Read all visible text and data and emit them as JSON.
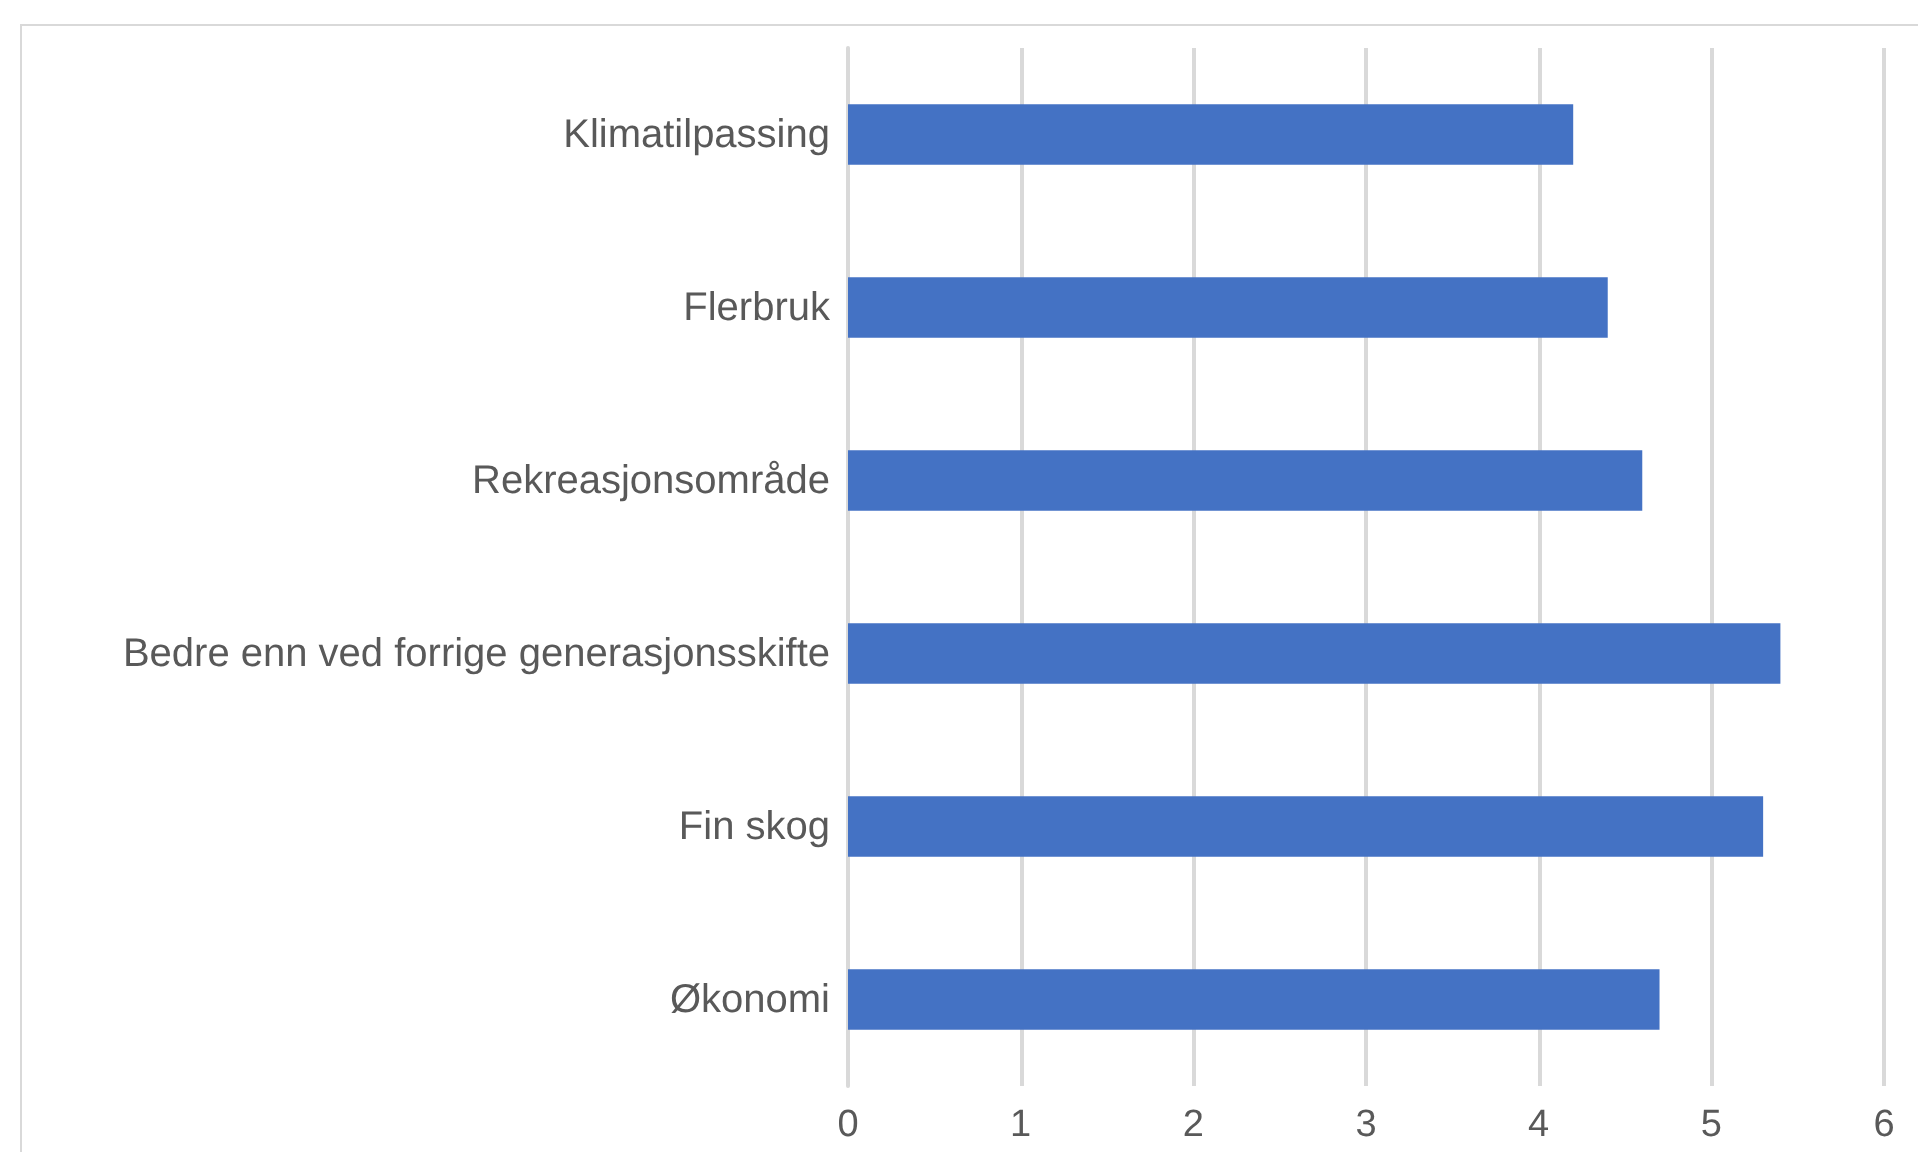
{
  "chart_data": {
    "type": "bar",
    "orientation": "horizontal",
    "categories": [
      "Klimatilpassing",
      "Flerbruk",
      "Rekreasjonsområde",
      "Bedre enn ved forrige generasjonsskifte",
      "Fin skog",
      "Økonomi"
    ],
    "values": [
      4.2,
      4.4,
      4.6,
      5.4,
      5.3,
      4.7
    ],
    "color": "#4472c4",
    "xlim": [
      0,
      6
    ],
    "xticks": [
      0,
      1,
      2,
      3,
      4,
      5,
      6
    ],
    "grid": "x"
  }
}
